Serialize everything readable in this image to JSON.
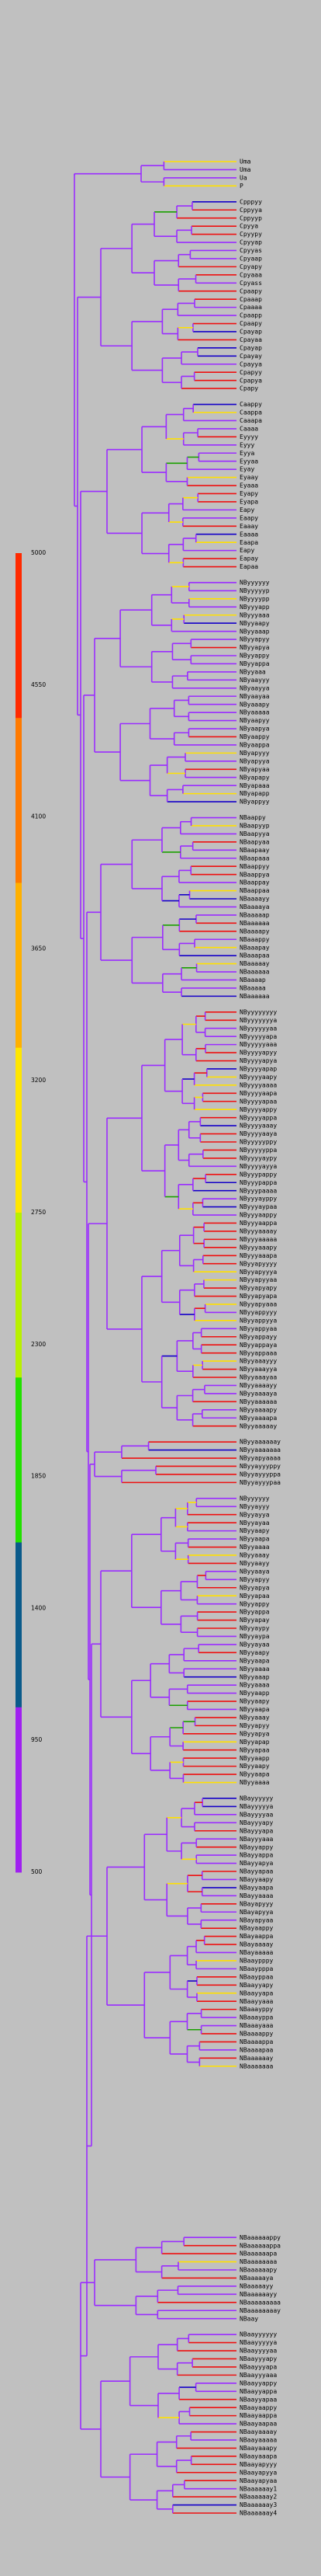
{
  "legend": {
    "ticks": [
      "5000",
      "4550",
      "4100",
      "3650",
      "3200",
      "2750",
      "2300",
      "1850",
      "1400",
      "950",
      "500"
    ],
    "bands": [
      {
        "color": "#ff2a00"
      },
      {
        "color": "#ff7a00"
      },
      {
        "color": "#ffb000"
      },
      {
        "color": "#ffe600"
      },
      {
        "color": "#b8f000"
      },
      {
        "color": "#22e000"
      },
      {
        "color": "#0a5a8a"
      },
      {
        "color": "#a020f0"
      }
    ]
  },
  "branch_colors": {
    "base": "#9a2cff",
    "deep_blue": "#1400c8",
    "green": "#1aa000",
    "yellow": "#ffe000",
    "red": "#ee1010"
  },
  "groups": [
    {
      "names": [
        "Uma",
        "Uma",
        "Ua",
        "P"
      ],
      "hot": 0
    },
    {
      "names": [
        "Cpppyy",
        "Cppyya",
        "Cppyyp",
        "Cpyya",
        "Cpyypy",
        "Cpyyap",
        "Cpyyas",
        "Cpyaap",
        "Cpyapy",
        "Cpyaaa",
        "Cpyass",
        "Cpaapy",
        "Cpaaap",
        "Cpaaaa",
        "Cpaapp",
        "Cpaapy",
        "Cpayap",
        "Cpayaa",
        "Cpayap",
        "Cpayay",
        "Cpayya",
        "Cpapyy",
        "Cpapya",
        "Cpapy"
      ],
      "hot": 0.3
    },
    {
      "names": [
        "Caappy",
        "Caappa",
        "Caaapa",
        "Caaaa",
        "Eyyyy",
        "Eyyy",
        "Eyya",
        "Eyyaa",
        "Eyay",
        "Eyaay",
        "Eyaaa",
        "Eyapy",
        "Eyapa",
        "Eapy",
        "Eaapy",
        "Eaaay",
        "Eaaaa",
        "Eaapa",
        "Eapy",
        "Eapay",
        "Eapaa"
      ],
      "hot": 0.2
    },
    {
      "names": [
        "NByyyyyy",
        "NByyyyyp",
        "NByyyypp",
        "NByyyapp",
        "NByyyaaa",
        "NByyaapy",
        "NByyaaap",
        "NByyapyy",
        "NByyapya",
        "NByyappy",
        "NByyappa",
        "NByyaaa",
        "NByaayyy",
        "NByaayya",
        "NByaayaa",
        "NByaaapy",
        "NByaaaaa",
        "NByaapyy",
        "NByaapya",
        "NByaappy",
        "NByaappa",
        "NByapyyy",
        "NByapyya",
        "NByapyaa",
        "NByapapy",
        "NByapaaa",
        "NByapapp",
        "NByappyy"
      ],
      "hot": 0.15
    },
    {
      "names": [
        "NBaappy",
        "NBaapyyp",
        "NBaapyya",
        "NBaapyaa",
        "NBaapaay",
        "NBaapaaa",
        "NBaappyy",
        "NBaappya",
        "NBaappay",
        "NBaappaa",
        "NBaaaayy",
        "NBaaaaya",
        "NBaaaaap",
        "NBaaaaaa",
        "NBaaaapy",
        "NBaaappy",
        "NBaaapay",
        "NBaaapaa",
        "NBaaaaay",
        "NBaaaaaa",
        "NBaaaap",
        "NBaaaaa",
        "NBaaaaaa"
      ],
      "hot": 0.2
    },
    {
      "names": [
        "NByyyyyyyy",
        "NByyyyyyya",
        "NByyyyyyaa",
        "NByyyyyapa",
        "NByyyyyaaa",
        "NByyyyapyy",
        "NByyyyapya",
        "NByyyyapap",
        "NByyyyaapy",
        "NByyyyaaaa",
        "NByyyyaapa",
        "NByyyyapaa",
        "NByyyyappy",
        "NByyyyappa",
        "NByyyyaaay",
        "NByyyyaaya",
        "NByyyyyppy",
        "NByyyyyppa",
        "NByyyyaypy",
        "NByyyyayya",
        "NByyypappy",
        "NByyypappa",
        "NByyypaaaa",
        "NByyyayppy",
        "NByyyaypaa",
        "NByyyaappy",
        "NByyyaappa",
        "NByyyaaaay",
        "NByyyaaaaa",
        "NByyyaaapy",
        "NByyyaaapa",
        "NByyapyyyy",
        "NByyapyyya",
        "NByyapyyaa",
        "NByyapyapy",
        "NByyapyapa",
        "NByyapyaaa",
        "NByyappyyy",
        "NByyappyya",
        "NByyappyaa",
        "NByyappayy",
        "NByyappaya",
        "NByyappaaa",
        "NByyaaayyy",
        "NByyaaayya",
        "NByyaaayaa",
        "NByyaaaayy",
        "NByyaaaaya",
        "NByyaaaaaa",
        "NByyaaaapy",
        "NByyaaaapa",
        "NByyaaaaay"
      ],
      "hot": 0.45
    },
    {
      "names": [
        "NByyaaaaaay",
        "NByyaaaaaaa",
        "NByyapyaaaa",
        "NByyayyyppy",
        "NByyayyyppa",
        "NByyayyypaa"
      ],
      "hot": 0.35
    },
    {
      "names": [
        "NByyyyyy",
        "NByyayyy",
        "NByyayya",
        "NByyayaa",
        "NByyaapy",
        "NByyaapa",
        "NByyaaaa",
        "NByyaaay",
        "NByyaayy",
        "NByyaaya",
        "NByyapyy",
        "NByyapya",
        "NByyapaa",
        "NByyappy",
        "NByyappa",
        "NByyapay",
        "NByyaypy",
        "NByyaypa",
        "NByyayaa",
        "NByyaapy",
        "NByyaapa",
        "NByyaaaa",
        "NByyaaap",
        "NByyaaaa",
        "NByyaapp",
        "NByyaapy",
        "NByyaapa",
        "NByyaaay",
        "NByyapyy",
        "NByyapya",
        "NByyapap",
        "NByyapaa",
        "NByyaapp",
        "NByyaapy",
        "NByyaapa",
        "NByyaaaa"
      ],
      "hot": 0.4
    },
    {
      "names": [
        "NBayyyyyy",
        "NBayyyyya",
        "NBayyyyaa",
        "NBayyyapy",
        "NBayyyapa",
        "NBayyyaaa",
        "NBayyappy",
        "NBayyappa",
        "NBayyapya",
        "NBayyapaa",
        "NBayyaapy",
        "NBayyaapa",
        "NBayyaaaa",
        "NBayapyyy",
        "NBayapyya",
        "NBayapyaa",
        "NBayaappy",
        "NBayaappa",
        "NBayaaaay",
        "NBayaaaaa",
        "NBaaypppy",
        "NBaaypppa",
        "NBaayppaa",
        "NBaayyapy",
        "NBaayyapa",
        "NBaayyaaa",
        "NBaaayppy",
        "NBaaayppa",
        "NBaaayaaa",
        "NBaaaappy",
        "NBaaaappa",
        "NBaaaapaa",
        "NBaaaaaay",
        "NBaaaaaaa"
      ],
      "hot": 0.5
    },
    {
      "names": [
        "NBaaaaaappy",
        "NBaaaaaappa",
        "NBaaaaaapa",
        "NBaaaaaaaa",
        "NBaaaaaapy",
        "NBaaaaaya",
        "NBaaaaayy",
        "NBaaaaaayy",
        "NBaaaaaaaaa",
        "NBaaaaaaaay",
        "NBaay"
      ],
      "hot": 0.3
    },
    {
      "names": [
        "NBaayyyyyy",
        "NBaayyyyya",
        "NBaayyyyaa",
        "NBaayyyapy",
        "NBaayyyapa",
        "NBaayyyaaa",
        "NBaayyappy",
        "NBaayyappa",
        "NBaayyapaa",
        "NBaayaappy",
        "NBaayaappa",
        "NBaayaapaa",
        "NBaayaaaay",
        "NBaayaaaaa",
        "NBaayaaapy",
        "NBaayaaapa",
        "NBaayapyyy",
        "NBaayapyya",
        "NBaayapyaa",
        "NBaaaaaay1",
        "NBaaaaaay2",
        "NBaaaaaay3",
        "NBaaaaaay4"
      ],
      "hot": 0.55
    }
  ]
}
